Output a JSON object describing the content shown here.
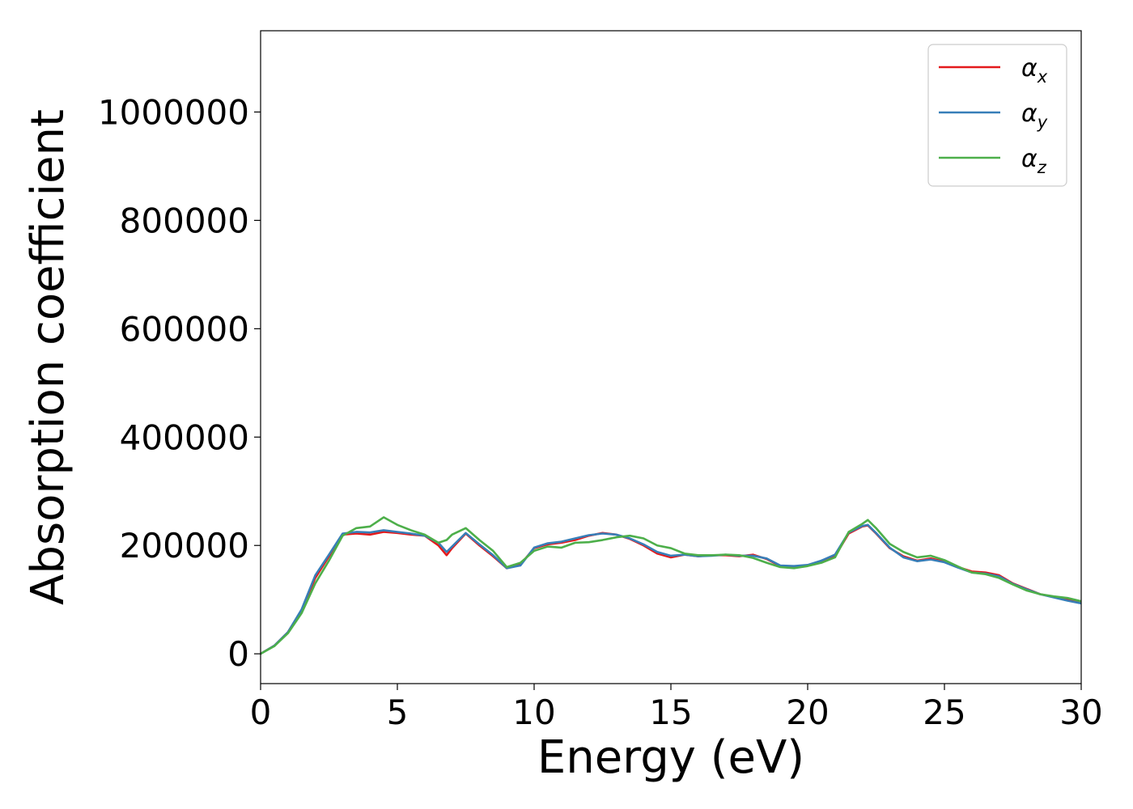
{
  "chart_data": {
    "type": "line",
    "title": "",
    "xlabel": "Energy (eV)",
    "ylabel": "Absorption coefficient",
    "xlim": [
      0,
      30
    ],
    "ylim": [
      -55000,
      1150000
    ],
    "xticks": [
      0,
      5,
      10,
      15,
      20,
      25,
      30
    ],
    "xtick_labels": [
      "0",
      "5",
      "10",
      "15",
      "20",
      "25",
      "30"
    ],
    "yticks": [
      0,
      200000,
      400000,
      600000,
      800000,
      1000000
    ],
    "ytick_labels": [
      "0",
      "200000",
      "400000",
      "600000",
      "800000",
      "1000000"
    ],
    "grid": false,
    "legend_position": "top-right",
    "series": [
      {
        "name": "αx",
        "legend_base": "α",
        "legend_sub": "x",
        "color": "#e41a1c",
        "x": [
          0,
          0.5,
          1,
          1.5,
          2,
          2.5,
          3,
          3.5,
          4,
          4.5,
          5,
          5.5,
          6,
          6.5,
          6.8,
          7,
          7.5,
          8,
          8.5,
          9,
          9.5,
          10,
          10.5,
          11,
          11.5,
          12,
          12.5,
          13,
          13.5,
          14,
          14.5,
          15,
          15.5,
          16,
          16.5,
          17,
          17.5,
          18,
          18.5,
          19,
          19.5,
          20,
          20.5,
          21,
          21.5,
          22,
          22.2,
          22.5,
          23,
          23.5,
          24,
          24.5,
          25,
          25.5,
          26,
          26.5,
          27,
          27.5,
          28,
          28.5,
          29,
          29.5,
          30
        ],
        "y": [
          0,
          15000,
          40000,
          80000,
          140000,
          180000,
          220000,
          222000,
          220000,
          225000,
          223000,
          220000,
          218000,
          200000,
          182000,
          195000,
          222000,
          200000,
          180000,
          158000,
          165000,
          195000,
          202000,
          205000,
          210000,
          218000,
          223000,
          220000,
          212000,
          200000,
          185000,
          178000,
          183000,
          180000,
          182000,
          182000,
          180000,
          183000,
          175000,
          162000,
          160000,
          163000,
          170000,
          180000,
          222000,
          235000,
          237000,
          222000,
          195000,
          180000,
          172000,
          176000,
          170000,
          160000,
          152000,
          150000,
          145000,
          130000,
          120000,
          110000,
          105000,
          100000,
          95000
        ]
      },
      {
        "name": "αy",
        "legend_base": "α",
        "legend_sub": "y",
        "color": "#377eb8",
        "x": [
          0,
          0.5,
          1,
          1.5,
          2,
          2.5,
          3,
          3.5,
          4,
          4.5,
          5,
          5.5,
          6,
          6.5,
          6.8,
          7,
          7.5,
          8,
          8.5,
          9,
          9.5,
          10,
          10.5,
          11,
          11.5,
          12,
          12.5,
          13,
          13.5,
          14,
          14.5,
          15,
          15.5,
          16,
          16.5,
          17,
          17.5,
          18,
          18.5,
          19,
          19.5,
          20,
          20.5,
          21,
          21.5,
          22,
          22.2,
          22.5,
          23,
          23.5,
          24,
          24.5,
          25,
          25.5,
          26,
          26.5,
          27,
          27.5,
          28,
          28.5,
          29,
          29.5,
          30
        ],
        "y": [
          0,
          15000,
          40000,
          82000,
          145000,
          183000,
          222000,
          225000,
          224000,
          228000,
          225000,
          222000,
          218000,
          205000,
          188000,
          198000,
          223000,
          202000,
          182000,
          158000,
          163000,
          196000,
          204000,
          207000,
          213000,
          219000,
          222000,
          220000,
          213000,
          202000,
          188000,
          181000,
          183000,
          180000,
          181000,
          183000,
          181000,
          181000,
          176000,
          163000,
          162000,
          164000,
          172000,
          183000,
          224000,
          236000,
          238000,
          223000,
          196000,
          178000,
          171000,
          174000,
          169000,
          159000,
          150000,
          148000,
          143000,
          129000,
          119000,
          110000,
          104000,
          98000,
          93000
        ]
      },
      {
        "name": "αz",
        "legend_base": "α",
        "legend_sub": "z",
        "color": "#4daf4a",
        "x": [
          0,
          0.5,
          1,
          1.5,
          2,
          2.5,
          3,
          3.5,
          4,
          4.5,
          5,
          5.5,
          6,
          6.5,
          6.8,
          7,
          7.5,
          8,
          8.5,
          9,
          9.5,
          10,
          10.5,
          11,
          11.5,
          12,
          12.5,
          13,
          13.5,
          14,
          14.5,
          15,
          15.5,
          16,
          16.5,
          17,
          17.5,
          18,
          18.5,
          19,
          19.5,
          20,
          20.5,
          21,
          21.5,
          22,
          22.2,
          22.5,
          23,
          23.5,
          24,
          24.5,
          25,
          25.5,
          26,
          26.5,
          27,
          27.5,
          28,
          28.5,
          29,
          29.5,
          30
        ],
        "y": [
          0,
          14000,
          38000,
          75000,
          130000,
          172000,
          218000,
          232000,
          235000,
          252000,
          238000,
          228000,
          220000,
          205000,
          210000,
          220000,
          232000,
          210000,
          190000,
          160000,
          168000,
          190000,
          198000,
          196000,
          205000,
          206000,
          210000,
          215000,
          218000,
          213000,
          200000,
          195000,
          185000,
          182000,
          182000,
          183000,
          182000,
          177000,
          168000,
          160000,
          158000,
          162000,
          168000,
          178000,
          225000,
          240000,
          247000,
          232000,
          203000,
          188000,
          178000,
          181000,
          173000,
          161000,
          150000,
          147000,
          140000,
          128000,
          117000,
          110000,
          106000,
          103000,
          97000
        ]
      }
    ]
  }
}
